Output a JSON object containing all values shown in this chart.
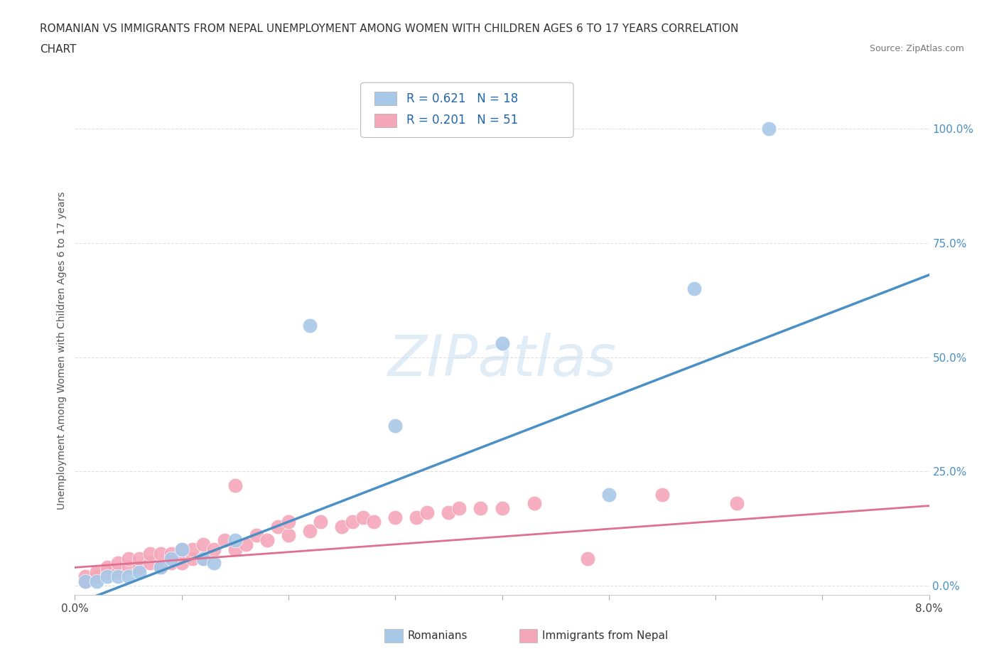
{
  "title_line1": "ROMANIAN VS IMMIGRANTS FROM NEPAL UNEMPLOYMENT AMONG WOMEN WITH CHILDREN AGES 6 TO 17 YEARS CORRELATION",
  "title_line2": "CHART",
  "source": "Source: ZipAtlas.com",
  "ylabel": "Unemployment Among Women with Children Ages 6 to 17 years",
  "ylabel_right_ticks": [
    "0.0%",
    "25.0%",
    "50.0%",
    "75.0%",
    "100.0%"
  ],
  "ylabel_right_vals": [
    0.0,
    0.25,
    0.5,
    0.75,
    1.0
  ],
  "xlim": [
    0.0,
    0.08
  ],
  "ylim": [
    -0.02,
    1.05
  ],
  "legend_romanian": "R = 0.621   N = 18",
  "legend_nepal": "R = 0.201   N = 51",
  "romanian_color": "#a8c8e8",
  "nepal_color": "#f4a7b9",
  "romanian_line_color": "#4a90c4",
  "nepal_line_color": "#e07090",
  "watermark_text": "ZIPatlas",
  "grid_color": "#e0e0e0",
  "bg_color": "#ffffff",
  "romanian_scatter_x": [
    0.001,
    0.002,
    0.003,
    0.004,
    0.005,
    0.006,
    0.008,
    0.009,
    0.01,
    0.012,
    0.013,
    0.015,
    0.022,
    0.03,
    0.04,
    0.05,
    0.058,
    0.065
  ],
  "romanian_scatter_y": [
    0.01,
    0.01,
    0.02,
    0.02,
    0.02,
    0.03,
    0.04,
    0.06,
    0.08,
    0.06,
    0.05,
    0.1,
    0.57,
    0.35,
    0.53,
    0.2,
    0.65,
    1.0
  ],
  "nepal_scatter_x": [
    0.001,
    0.001,
    0.002,
    0.002,
    0.003,
    0.003,
    0.004,
    0.004,
    0.005,
    0.005,
    0.006,
    0.006,
    0.007,
    0.007,
    0.008,
    0.008,
    0.009,
    0.009,
    0.01,
    0.01,
    0.011,
    0.011,
    0.012,
    0.012,
    0.013,
    0.014,
    0.015,
    0.015,
    0.016,
    0.017,
    0.018,
    0.019,
    0.02,
    0.02,
    0.022,
    0.023,
    0.025,
    0.026,
    0.027,
    0.028,
    0.03,
    0.032,
    0.033,
    0.035,
    0.036,
    0.038,
    0.04,
    0.043,
    0.048,
    0.055,
    0.062
  ],
  "nepal_scatter_y": [
    0.01,
    0.02,
    0.02,
    0.03,
    0.03,
    0.04,
    0.03,
    0.05,
    0.04,
    0.06,
    0.04,
    0.06,
    0.05,
    0.07,
    0.04,
    0.07,
    0.05,
    0.07,
    0.05,
    0.08,
    0.06,
    0.08,
    0.06,
    0.09,
    0.08,
    0.1,
    0.08,
    0.22,
    0.09,
    0.11,
    0.1,
    0.13,
    0.11,
    0.14,
    0.12,
    0.14,
    0.13,
    0.14,
    0.15,
    0.14,
    0.15,
    0.15,
    0.16,
    0.16,
    0.17,
    0.17,
    0.17,
    0.18,
    0.06,
    0.2,
    0.18
  ],
  "romanian_trend_x": [
    0.0,
    0.08
  ],
  "romanian_trend_y": [
    -0.04,
    0.68
  ],
  "nepal_trend_x": [
    0.0,
    0.08
  ],
  "nepal_trend_y": [
    0.04,
    0.175
  ]
}
